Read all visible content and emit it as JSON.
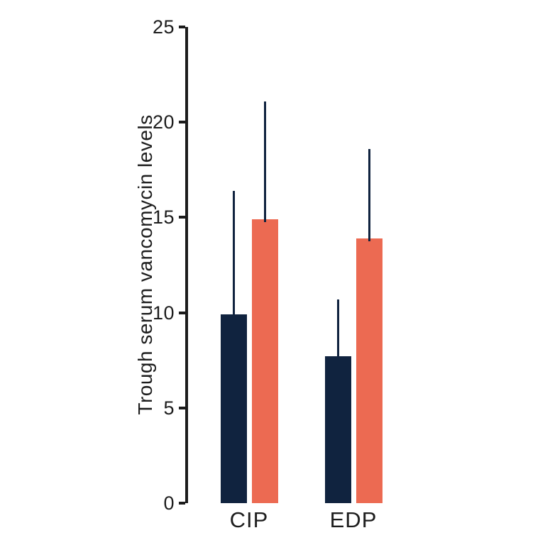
{
  "chart_data": {
    "type": "bar",
    "title": "",
    "xlabel": "",
    "ylabel": "Trough serum vancomycin levels",
    "categories": [
      "CIP",
      "EDP"
    ],
    "series": [
      {
        "name": "dark-navy-series",
        "color": "#10233F",
        "values": [
          9.9,
          7.7
        ],
        "error_top": [
          16.4,
          10.7
        ]
      },
      {
        "name": "coral-series",
        "color": "#EC6A52",
        "values": [
          14.9,
          13.9
        ],
        "error_top": [
          21.1,
          18.6
        ]
      }
    ],
    "error_bar_color": "#10233F",
    "yticks": [
      0,
      5,
      10,
      15,
      20,
      25
    ],
    "ylim": [
      0,
      25
    ],
    "grid": false,
    "legend_position": "none",
    "axis_color": "#1c1c1c",
    "text_color": "#1d1d1d"
  }
}
